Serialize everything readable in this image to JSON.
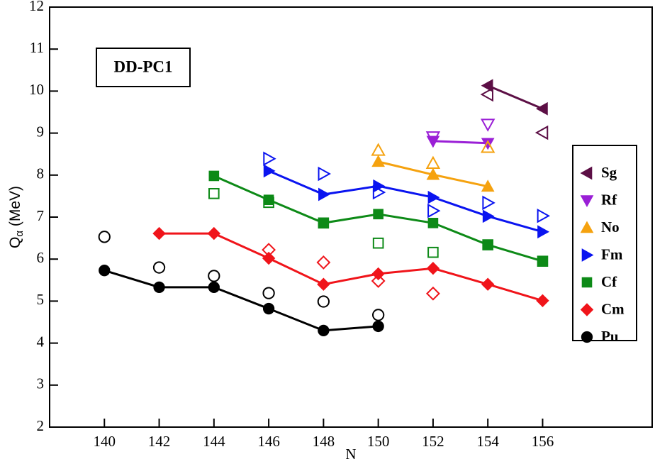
{
  "chart_data": {
    "type": "scatter-line",
    "annotation": "DD-PC1",
    "xlabel": "N",
    "ylabel": [
      "Q",
      "α",
      " (MeV)"
    ],
    "xlim": [
      138,
      160
    ],
    "xticks": [
      140,
      142,
      144,
      146,
      148,
      150,
      152,
      154,
      156
    ],
    "ylim": [
      2,
      12
    ],
    "yticks": [
      2,
      3,
      4,
      5,
      6,
      7,
      8,
      9,
      10,
      11,
      12
    ],
    "series": [
      {
        "name": "Sg",
        "color": "#5c0f45",
        "marker": "left",
        "filled": true,
        "line": true,
        "x": [
          154,
          156
        ],
        "values": [
          10.13,
          9.58
        ]
      },
      {
        "name": "Rf",
        "color": "#9a1fd6",
        "marker": "down",
        "filled": true,
        "line": true,
        "x": [
          152,
          154
        ],
        "values": [
          8.81,
          8.76
        ]
      },
      {
        "name": "No",
        "color": "#f5a20f",
        "marker": "up",
        "filled": true,
        "line": true,
        "x": [
          150,
          152,
          154
        ],
        "values": [
          8.32,
          8.01,
          7.73
        ]
      },
      {
        "name": "Fm",
        "color": "#0a14f0",
        "marker": "right",
        "filled": true,
        "line": true,
        "x": [
          146,
          148,
          150,
          152,
          154,
          156
        ],
        "values": [
          8.1,
          7.54,
          7.74,
          7.47,
          7.02,
          6.65
        ]
      },
      {
        "name": "Cf",
        "color": "#0d8a17",
        "marker": "square",
        "filled": true,
        "line": true,
        "x": [
          144,
          146,
          148,
          150,
          152,
          154,
          156
        ],
        "values": [
          7.98,
          7.41,
          6.86,
          7.07,
          6.86,
          6.34,
          5.95
        ]
      },
      {
        "name": "Cm",
        "color": "#f0141a",
        "marker": "diamond",
        "filled": true,
        "line": true,
        "x": [
          142,
          144,
          146,
          148,
          150,
          152,
          154,
          156
        ],
        "values": [
          6.61,
          6.61,
          6.02,
          5.4,
          5.65,
          5.78,
          5.4,
          5.01
        ]
      },
      {
        "name": "Pu",
        "color": "#000000",
        "marker": "circle",
        "filled": true,
        "line": true,
        "x": [
          140,
          142,
          144,
          146,
          148,
          150
        ],
        "values": [
          5.73,
          5.33,
          5.33,
          4.82,
          4.3,
          4.4
        ]
      },
      {
        "color": "#5c0f45",
        "marker": "left",
        "filled": false,
        "line": false,
        "x": [
          154,
          156
        ],
        "values": [
          9.92,
          9.01
        ]
      },
      {
        "color": "#9a1fd6",
        "marker": "down",
        "filled": false,
        "line": false,
        "x": [
          152,
          154
        ],
        "values": [
          8.91,
          9.21
        ]
      },
      {
        "color": "#f5a20f",
        "marker": "up",
        "filled": false,
        "line": false,
        "x": [
          150,
          152,
          154
        ],
        "values": [
          8.59,
          8.28,
          8.66
        ]
      },
      {
        "color": "#0a14f0",
        "marker": "right",
        "filled": false,
        "line": false,
        "x": [
          146,
          148,
          150,
          152,
          154,
          156
        ],
        "values": [
          8.39,
          8.03,
          7.59,
          7.15,
          7.34,
          7.03
        ]
      },
      {
        "color": "#0d8a17",
        "marker": "square",
        "filled": false,
        "line": false,
        "x": [
          144,
          146,
          148,
          150,
          152,
          154,
          156
        ],
        "values": [
          7.56,
          7.35,
          6.86,
          6.38,
          6.16,
          6.34,
          5.95
        ]
      },
      {
        "color": "#f0141a",
        "marker": "diamond",
        "filled": false,
        "line": false,
        "x": [
          146,
          148,
          150,
          152
        ],
        "values": [
          6.22,
          5.92,
          5.48,
          5.18
        ]
      },
      {
        "color": "#000000",
        "marker": "circle",
        "filled": false,
        "line": false,
        "x": [
          140,
          142,
          144,
          146,
          148,
          150
        ],
        "values": [
          6.53,
          5.8,
          5.6,
          5.19,
          4.99,
          4.67
        ]
      }
    ]
  }
}
